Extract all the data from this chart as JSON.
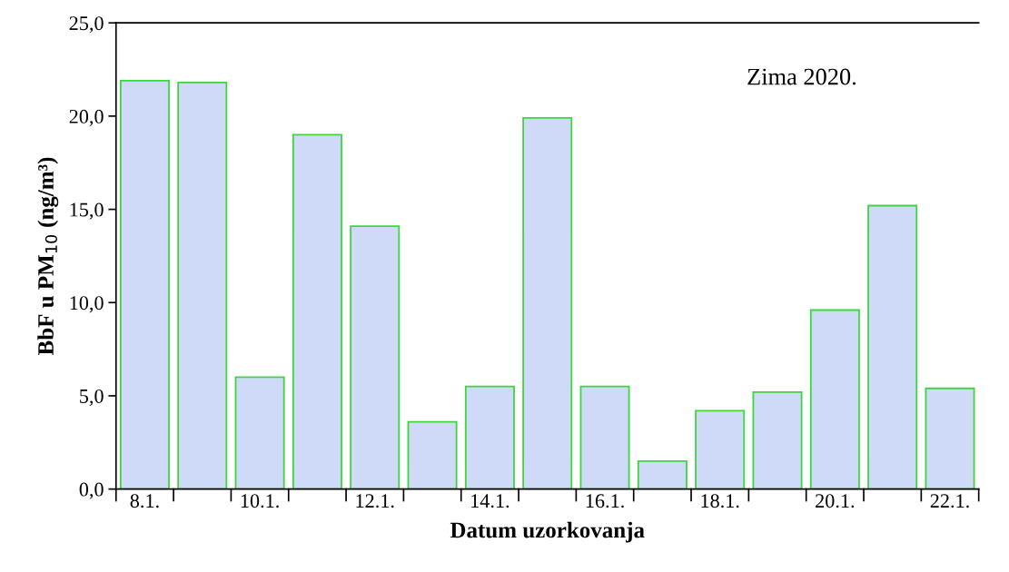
{
  "chart_data": {
    "type": "bar",
    "categories": [
      "8.1.",
      null,
      "10.1.",
      null,
      "12.1.",
      null,
      "14.1.",
      null,
      "16.1.",
      null,
      "18.1.",
      null,
      "20.1.",
      null,
      "22.1."
    ],
    "values": [
      21.9,
      21.8,
      6.0,
      19.0,
      14.1,
      3.6,
      5.5,
      19.9,
      5.5,
      1.5,
      4.2,
      5.2,
      9.6,
      15.2,
      5.4
    ],
    "color": "#cfdaf8",
    "xlabel": "Datum uzorkovanja",
    "ylabel": "BbF u PM$_{10}$ (ng/m³)",
    "annotations": [
      "Zima 2020."
    ],
    "ylim": [
      0,
      25
    ],
    "yticks": [
      {
        "value": 0,
        "label": "0,0"
      },
      {
        "value": 5,
        "label": "5,0"
      },
      {
        "value": 10,
        "label": "10,0"
      },
      {
        "value": 15,
        "label": "15,0"
      },
      {
        "value": 20,
        "label": "20,0"
      },
      {
        "value": 25,
        "label": "25,0"
      }
    ],
    "grid": false,
    "legend": false
  }
}
